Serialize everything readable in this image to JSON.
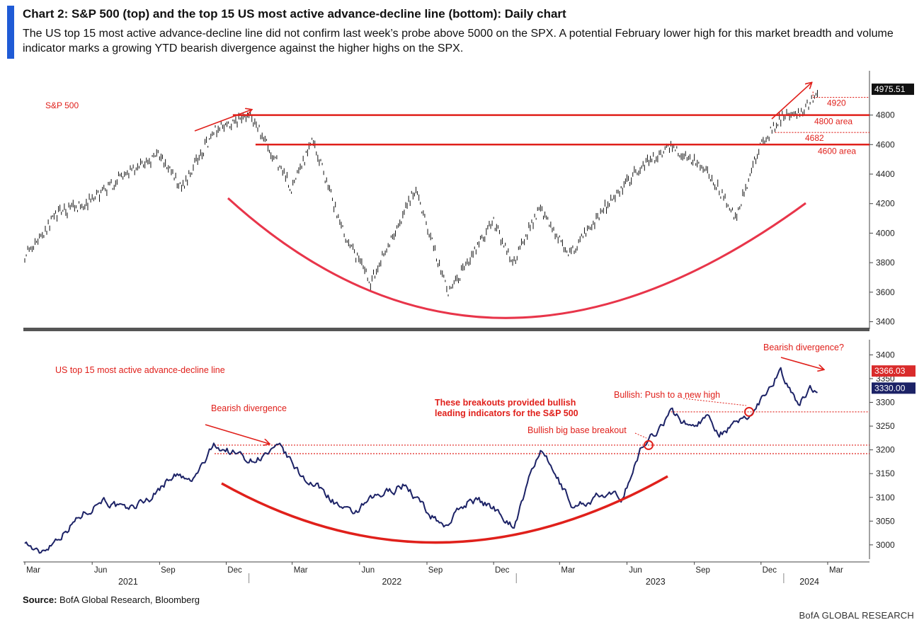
{
  "header": {
    "title": "Chart 2: S&P 500 (top) and the top 15 US most active advance-decline line (bottom): Daily chart",
    "subtitle": "The US top 15 most active advance-decline line did not confirm last week’s probe above 5000 on the SPX. A potential February lower high for this market breadth and volume indicator marks a growing YTD bearish divergence against the higher highs on the SPX."
  },
  "footer": {
    "source_label": "Source:",
    "source_text": "BofA Global Research, Bloomberg",
    "brand": "BofA GLOBAL RESEARCH"
  },
  "colors": {
    "accent": "#1f5bd6",
    "annotation_red": "#e0201b",
    "line_navy": "#1c2266",
    "candle": "#111111"
  },
  "chart_data": [
    {
      "type": "line",
      "label": "S&P 500",
      "x_range": [
        "2021-03-01",
        "2024-03-31"
      ],
      "ylim": [
        3350,
        5100
      ],
      "yticks": [
        3400,
        3600,
        3800,
        4000,
        4200,
        4400,
        4600,
        4800
      ],
      "last_value_label": "4975.51",
      "series": [
        {
          "name": "S&P 500",
          "x": [
            "2021-03-01",
            "2021-04-15",
            "2021-06-01",
            "2021-07-15",
            "2021-09-01",
            "2021-10-01",
            "2021-11-15",
            "2022-01-03",
            "2022-03-01",
            "2022-03-29",
            "2022-05-10",
            "2022-06-16",
            "2022-08-16",
            "2022-09-30",
            "2022-11-30",
            "2022-12-28",
            "2023-02-02",
            "2023-03-13",
            "2023-04-30",
            "2023-06-15",
            "2023-07-31",
            "2023-09-15",
            "2023-10-27",
            "2023-12-01",
            "2023-12-28",
            "2024-01-31",
            "2024-02-16"
          ],
          "values": [
            3850,
            4130,
            4220,
            4400,
            4530,
            4300,
            4700,
            4800,
            4300,
            4630,
            4000,
            3666,
            4300,
            3585,
            4080,
            3800,
            4180,
            3850,
            4160,
            4420,
            4590,
            4450,
            4110,
            4600,
            4780,
            4845,
            4975
          ]
        }
      ],
      "horizontal_lines": [
        {
          "value": 4800,
          "label": "4800 area",
          "style": "solid"
        },
        {
          "value": 4600,
          "label": "4600 area",
          "style": "solid"
        },
        {
          "value": 4920,
          "label": "4920",
          "style": "dotted"
        },
        {
          "value": 4682,
          "label": "4682",
          "style": "dotted"
        }
      ]
    },
    {
      "type": "line",
      "label": "US top 15 most active advance-decline line",
      "x_range": [
        "2021-03-01",
        "2024-03-31"
      ],
      "ylim": [
        2970,
        3420
      ],
      "yticks": [
        3000,
        3050,
        3100,
        3150,
        3200,
        3250,
        3300,
        3350,
        3400
      ],
      "last_value_labels": [
        "3366.03",
        "3330.00"
      ],
      "series": [
        {
          "name": "US top 15 most active advance-decline line",
          "x": [
            "2021-03-01",
            "2021-03-20",
            "2021-05-15",
            "2021-06-15",
            "2021-07-15",
            "2021-08-20",
            "2021-09-20",
            "2021-10-15",
            "2021-11-15",
            "2022-01-03",
            "2022-02-15",
            "2022-03-10",
            "2022-04-15",
            "2022-05-20",
            "2022-06-15",
            "2022-08-01",
            "2022-09-01",
            "2022-09-25",
            "2022-11-01",
            "2022-12-10",
            "2022-12-28",
            "2023-02-02",
            "2023-03-01",
            "2023-03-20",
            "2023-04-20",
            "2023-05-25",
            "2023-06-20",
            "2023-07-31",
            "2023-08-25",
            "2023-09-20",
            "2023-10-05",
            "2023-10-27",
            "2023-11-20",
            "2023-12-10",
            "2023-12-28",
            "2024-01-20",
            "2024-02-05",
            "2024-02-16"
          ],
          "values": [
            3010,
            2980,
            3060,
            3100,
            3070,
            3100,
            3150,
            3130,
            3210,
            3180,
            3200,
            3150,
            3110,
            3060,
            3090,
            3130,
            3070,
            3040,
            3100,
            3070,
            3040,
            3200,
            3130,
            3080,
            3100,
            3100,
            3200,
            3280,
            3250,
            3270,
            3240,
            3250,
            3280,
            3330,
            3370,
            3290,
            3330,
            3330
          ]
        }
      ],
      "horizontal_lines": [
        {
          "value": 3280,
          "style": "dotted"
        },
        {
          "value": 3210,
          "style": "dotted"
        },
        {
          "value": 3192,
          "style": "dotted"
        }
      ]
    }
  ],
  "annotations": {
    "top_series_label": "S&P 500",
    "bottom_series_label": "US top 15 most active advance-decline line",
    "bearish_divergence": "Bearish divergence",
    "bearish_divergence_q": "Bearish divergence?",
    "breakouts_line1": "These breakouts provided bullish",
    "breakouts_line2": "leading indicators for the S&P 500",
    "bullish_new_high": "Bullish: Push to a new high",
    "bullish_base": "Bullish big base breakout"
  },
  "x_axis": {
    "months": [
      "Mar",
      "Jun",
      "Sep",
      "Dec",
      "Mar",
      "Jun",
      "Sep",
      "Dec",
      "Mar",
      "Jun",
      "Sep",
      "Dec",
      "Mar"
    ],
    "years": [
      "2021",
      "2022",
      "2023",
      "2024"
    ]
  }
}
